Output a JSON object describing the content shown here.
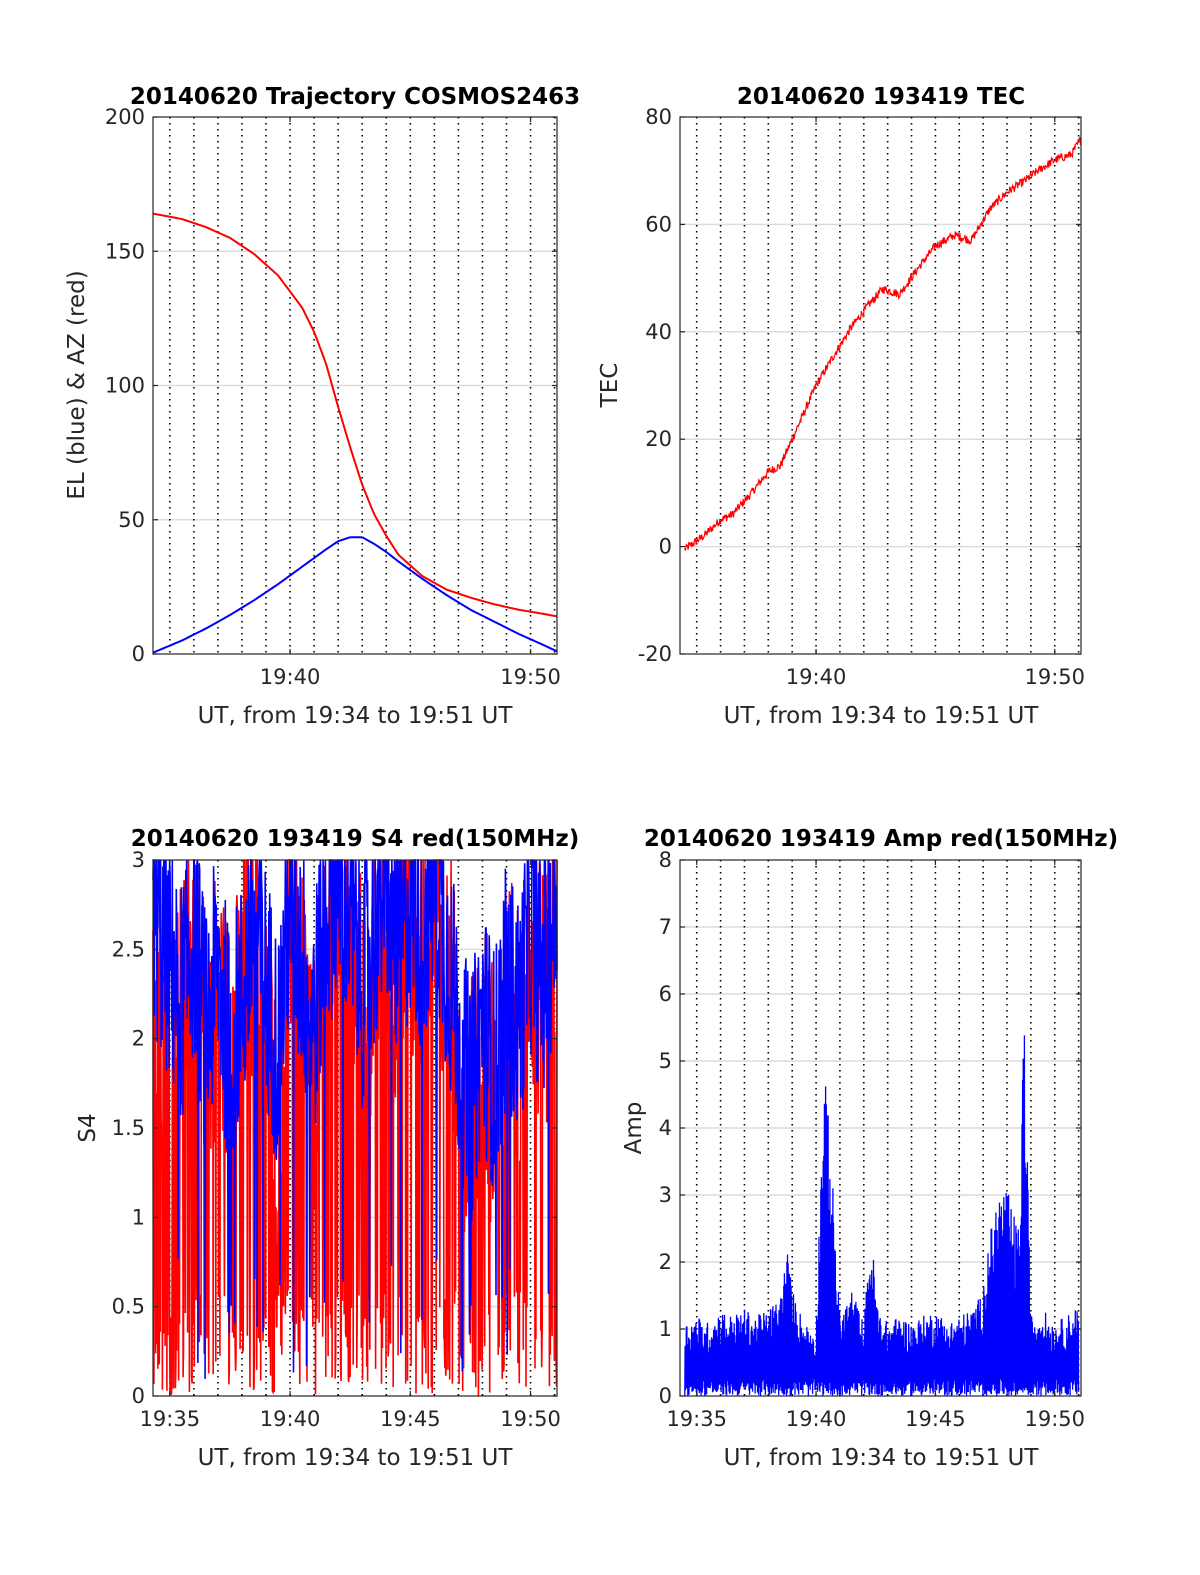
{
  "chart_data": [
    {
      "id": "trajectory",
      "type": "line",
      "title": "20140620 Trajectory COSMOS2463",
      "xlabel": "UT, from 19:34 to 19:51 UT",
      "ylabel": "EL (blue) & AZ (red)",
      "xlim": [
        19.3,
        36.1
      ],
      "ylim": [
        0,
        200
      ],
      "xticks": [
        {
          "value": 25,
          "label": "19:40"
        },
        {
          "value": 35,
          "label": "19:50"
        }
      ],
      "yticks": [
        {
          "value": 0,
          "label": "0"
        },
        {
          "value": 50,
          "label": "50"
        },
        {
          "value": 100,
          "label": "100"
        },
        {
          "value": 150,
          "label": "150"
        },
        {
          "value": 200,
          "label": "200"
        }
      ],
      "vgrid_step": 1,
      "series": [
        {
          "color": "#ff0000",
          "x": [
            19.3,
            20.5,
            21.5,
            22.5,
            23.5,
            24.5,
            25.5,
            26.0,
            26.5,
            27.0,
            27.5,
            28.0,
            28.5,
            29.0,
            29.5,
            30.5,
            31.5,
            32.5,
            33.5,
            34.5,
            35.5,
            36.1
          ],
          "y": [
            164,
            162,
            159,
            155,
            149,
            141,
            129,
            120,
            108,
            92,
            77,
            63,
            52,
            44,
            37,
            29,
            24,
            21,
            18.5,
            16.5,
            15,
            14
          ]
        },
        {
          "color": "#0000ff",
          "x": [
            19.3,
            20.5,
            21.5,
            22.5,
            23.5,
            24.5,
            25.5,
            26.5,
            27.0,
            27.5,
            28.0,
            28.5,
            29.0,
            29.5,
            30.5,
            31.5,
            32.5,
            33.5,
            34.5,
            35.5,
            36.1
          ],
          "y": [
            0.5,
            5,
            9.5,
            14.5,
            20,
            26,
            32.5,
            39,
            42,
            43.5,
            43.5,
            41,
            38,
            34.5,
            28,
            22,
            16.5,
            12,
            7.5,
            3.5,
            1
          ]
        }
      ]
    },
    {
      "id": "tec",
      "type": "line",
      "title": "20140620 193419 TEC",
      "xlabel": "UT, from 19:34 to 19:51 UT",
      "ylabel": "TEC",
      "xlim": [
        19.3,
        36.1
      ],
      "ylim": [
        -20,
        80
      ],
      "xticks": [
        {
          "value": 25,
          "label": "19:40"
        },
        {
          "value": 35,
          "label": "19:50"
        }
      ],
      "yticks": [
        {
          "value": -20,
          "label": "-20"
        },
        {
          "value": 0,
          "label": "0"
        },
        {
          "value": 20,
          "label": "20"
        },
        {
          "value": 40,
          "label": "40"
        },
        {
          "value": 60,
          "label": "60"
        },
        {
          "value": 80,
          "label": "80"
        }
      ],
      "vgrid_step": 1,
      "series": [
        {
          "color": "#ff0000",
          "x": [
            19.5,
            20.3,
            21.0,
            21.5,
            22.3,
            23.0,
            23.5,
            24.3,
            25.0,
            25.8,
            26.5,
            27.2,
            27.8,
            28.5,
            29.3,
            30.0,
            30.8,
            31.5,
            32.3,
            33.0,
            33.7,
            34.3,
            35.0,
            35.7,
            36.1
          ],
          "y": [
            -0.5,
            2,
            5,
            6,
            10,
            14,
            15,
            23,
            30,
            36,
            41,
            45,
            48,
            47,
            52,
            56,
            58,
            57,
            63,
            66,
            68,
            70,
            72,
            73,
            76
          ]
        }
      ]
    },
    {
      "id": "s4",
      "type": "line",
      "title": "20140620 193419 S4 red(150MHz)",
      "xlabel": "UT, from 19:34 to 19:51 UT",
      "ylabel": "S4",
      "xlim": [
        34.3,
        51.1
      ],
      "ylim": [
        0,
        3
      ],
      "xticks": [
        {
          "value": 35,
          "label": "19:35"
        },
        {
          "value": 40,
          "label": "19:40"
        },
        {
          "value": 45,
          "label": "19:45"
        },
        {
          "value": 50,
          "label": "19:50"
        }
      ],
      "yticks": [
        {
          "value": 0,
          "label": "0"
        },
        {
          "value": 0.5,
          "label": "0.5"
        },
        {
          "value": 1,
          "label": "1"
        },
        {
          "value": 1.5,
          "label": "1.5"
        },
        {
          "value": 2,
          "label": "2"
        },
        {
          "value": 2.5,
          "label": "2.5"
        },
        {
          "value": 3,
          "label": "3"
        }
      ],
      "vgrid_step": 1,
      "series": [
        {
          "color": "#ff0000",
          "x": [
            34.3,
            35.0,
            35.5,
            36.0,
            36.5,
            37.0,
            37.5,
            38.0,
            38.5,
            39.0,
            39.5,
            40.0,
            40.5,
            41.0,
            41.5,
            42.0,
            42.5,
            43.0,
            43.5,
            44.0,
            44.5,
            45.0,
            45.5,
            46.0,
            46.5,
            47.0,
            47.5,
            48.0,
            48.5,
            49.0,
            49.5,
            50.0,
            50.5,
            51.1
          ],
          "y": [
            2.3,
            1.4,
            1.8,
            2.2,
            1.6,
            2.0,
            1.5,
            1.9,
            2.3,
            1.8,
            1.2,
            2.4,
            2.0,
            1.4,
            2.3,
            2.6,
            2.2,
            1.8,
            2.1,
            2.5,
            2.0,
            2.4,
            2.2,
            2.6,
            2.1,
            1.6,
            1.2,
            1.7,
            1.3,
            2.0,
            1.6,
            2.2,
            1.8,
            2.4
          ]
        },
        {
          "color": "#0000ff",
          "x": [
            34.3,
            35.0,
            35.5,
            36.0,
            36.5,
            37.0,
            37.5,
            38.0,
            38.5,
            39.0,
            39.5,
            40.0,
            40.5,
            41.0,
            41.5,
            42.0,
            42.5,
            43.0,
            43.5,
            44.0,
            44.5,
            45.0,
            45.5,
            46.0,
            46.5,
            47.0,
            47.5,
            48.0,
            48.5,
            49.0,
            49.5,
            50.0,
            50.5,
            51.1
          ],
          "y": [
            2.5,
            2.2,
            2.0,
            2.4,
            1.8,
            2.2,
            1.7,
            2.0,
            2.5,
            2.1,
            1.7,
            2.6,
            2.2,
            1.9,
            2.5,
            2.7,
            2.5,
            2.1,
            2.4,
            2.7,
            2.3,
            2.6,
            2.4,
            2.7,
            2.3,
            1.8,
            1.4,
            1.9,
            1.6,
            2.1,
            1.9,
            2.4,
            2.1,
            2.6
          ]
        }
      ]
    },
    {
      "id": "amp",
      "type": "line",
      "title": "20140620 193419 Amp red(150MHz)",
      "xlabel": "UT, from 19:34 to 19:51 UT",
      "ylabel": "Amp",
      "xlim": [
        34.3,
        51.1
      ],
      "ylim": [
        0,
        8
      ],
      "xticks": [
        {
          "value": 35,
          "label": "19:35"
        },
        {
          "value": 40,
          "label": "19:40"
        },
        {
          "value": 45,
          "label": "19:45"
        },
        {
          "value": 50,
          "label": "19:50"
        }
      ],
      "yticks": [
        {
          "value": 0,
          "label": "0"
        },
        {
          "value": 1,
          "label": "1"
        },
        {
          "value": 2,
          "label": "2"
        },
        {
          "value": 3,
          "label": "3"
        },
        {
          "value": 4,
          "label": "4"
        },
        {
          "value": 5,
          "label": "5"
        },
        {
          "value": 6,
          "label": "6"
        },
        {
          "value": 7,
          "label": "7"
        },
        {
          "value": 8,
          "label": "8"
        }
      ],
      "vgrid_step": 1,
      "series": [
        {
          "color": "#0000ff",
          "x": [
            34.5,
            35.0,
            35.5,
            36.0,
            36.5,
            37.0,
            37.5,
            38.0,
            38.5,
            38.8,
            39.0,
            39.5,
            40.0,
            40.3,
            40.5,
            41.0,
            41.5,
            42.0,
            42.3,
            42.6,
            43.0,
            43.5,
            44.0,
            44.5,
            45.0,
            45.5,
            46.0,
            46.5,
            46.9,
            47.2,
            47.5,
            47.8,
            48.0,
            48.3,
            48.5,
            48.7,
            49.0,
            49.5,
            50.0,
            50.5,
            51.0
          ],
          "y": [
            1.1,
            1.2,
            1.1,
            1.3,
            1.2,
            1.3,
            1.2,
            1.3,
            1.5,
            2.2,
            1.6,
            1.1,
            1.0,
            4.8,
            4.5,
            1.2,
            1.6,
            1.1,
            2.5,
            1.3,
            1.1,
            1.2,
            1.1,
            1.2,
            1.3,
            1.1,
            1.2,
            1.3,
            1.5,
            2.2,
            2.9,
            3.2,
            3.1,
            2.7,
            2.5,
            6.0,
            1.2,
            1.3,
            1.1,
            1.2,
            1.4
          ]
        }
      ]
    }
  ]
}
